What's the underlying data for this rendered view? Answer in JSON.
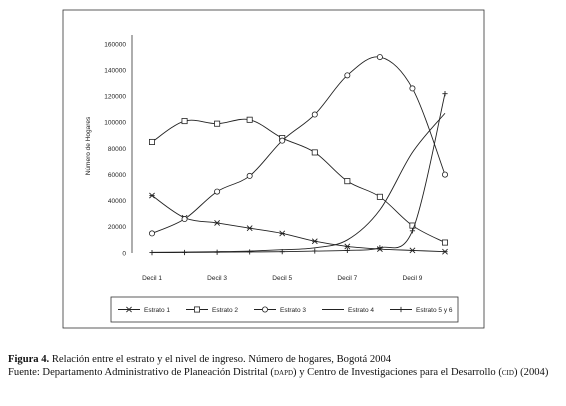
{
  "chart_data": {
    "type": "line",
    "title": "",
    "xlabel": "",
    "ylabel": "Número de Hogares",
    "ylim": [
      0,
      160000
    ],
    "yticks": [
      "0",
      "20000",
      "40000",
      "60000",
      "80000",
      "100000",
      "120000",
      "140000",
      "160000"
    ],
    "x": [
      1,
      2,
      3,
      4,
      5,
      6,
      7,
      8,
      9,
      10
    ],
    "xtick_labels": [
      {
        "x": 1,
        "label": "Decil 1"
      },
      {
        "x": 3,
        "label": "Decil 3"
      },
      {
        "x": 5,
        "label": "Decil 5"
      },
      {
        "x": 7,
        "label": "Decil 7"
      },
      {
        "x": 9,
        "label": "Decil 9"
      }
    ],
    "grid": false,
    "legend_position": "bottom",
    "series": [
      {
        "name": "Estrato 1",
        "marker": "asterisk",
        "values": [
          44000,
          27000,
          23000,
          19000,
          15000,
          9000,
          5000,
          3000,
          2000,
          1000
        ]
      },
      {
        "name": "Estrato 2",
        "marker": "square",
        "values": [
          85000,
          101000,
          99000,
          102000,
          88000,
          77000,
          55000,
          43000,
          21000,
          8000
        ]
      },
      {
        "name": "Estrato 3",
        "marker": "circle",
        "values": [
          15000,
          26000,
          47000,
          59000,
          86000,
          106000,
          136000,
          150000,
          126000,
          60000
        ]
      },
      {
        "name": "Estrato 4",
        "marker": "none",
        "values": [
          500,
          700,
          1000,
          1500,
          2500,
          4000,
          10000,
          33000,
          77000,
          107000
        ]
      },
      {
        "name": "Estrato 5 y 6",
        "marker": "plus",
        "values": [
          300,
          400,
          600,
          800,
          1000,
          1500,
          2000,
          4000,
          17000,
          122000
        ]
      }
    ]
  },
  "caption": {
    "figure_label": "Figura 4.",
    "figure_text": " Relación entre el estrato y el nivel de ingreso. Número de hogares, Bogotá 2004",
    "source_prefix": "Fuente: Departamento Administrativo de Planeación Distrital (",
    "source_abbr1": "dapd",
    "source_middle": ") y Centro de Investigaciones para el Desarrollo (",
    "source_abbr2": "cid",
    "source_suffix": ") (2004)"
  }
}
